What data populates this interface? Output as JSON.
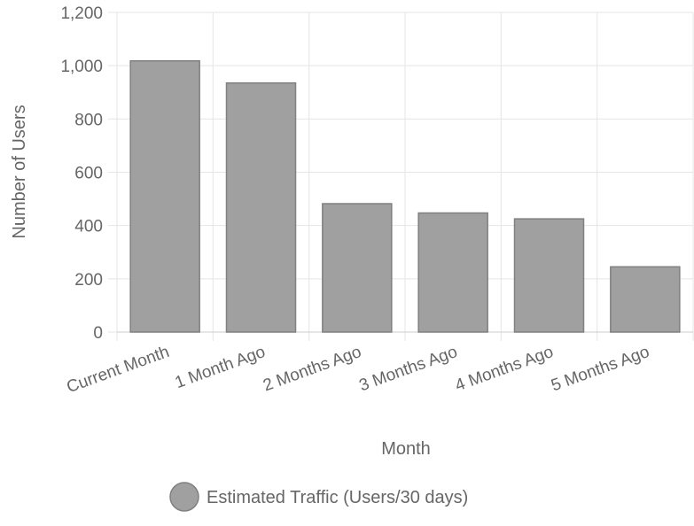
{
  "chart_data": {
    "type": "bar",
    "categories": [
      "Current Month",
      "1 Month Ago",
      "2 Months Ago",
      "3 Months Ago",
      "4 Months Ago",
      "5 Months Ago"
    ],
    "series": [
      {
        "name": "Estimated Traffic (Users/30 days)",
        "values": [
          1018,
          935,
          482,
          447,
          425,
          245
        ]
      }
    ],
    "xlabel": "Month",
    "ylabel": "Number of Users",
    "ylim": [
      0,
      1200
    ],
    "yticks": [
      "0",
      "200",
      "400",
      "600",
      "800",
      "1,000",
      "1,200"
    ],
    "ytick_values": [
      0,
      200,
      400,
      600,
      800,
      1000,
      1200
    ],
    "grid": true,
    "legend": "bottom",
    "colors": {
      "bar_fill": "#a0a0a0",
      "bar_stroke": "#808080",
      "grid": "#e5e5e5",
      "text": "#666666"
    }
  }
}
